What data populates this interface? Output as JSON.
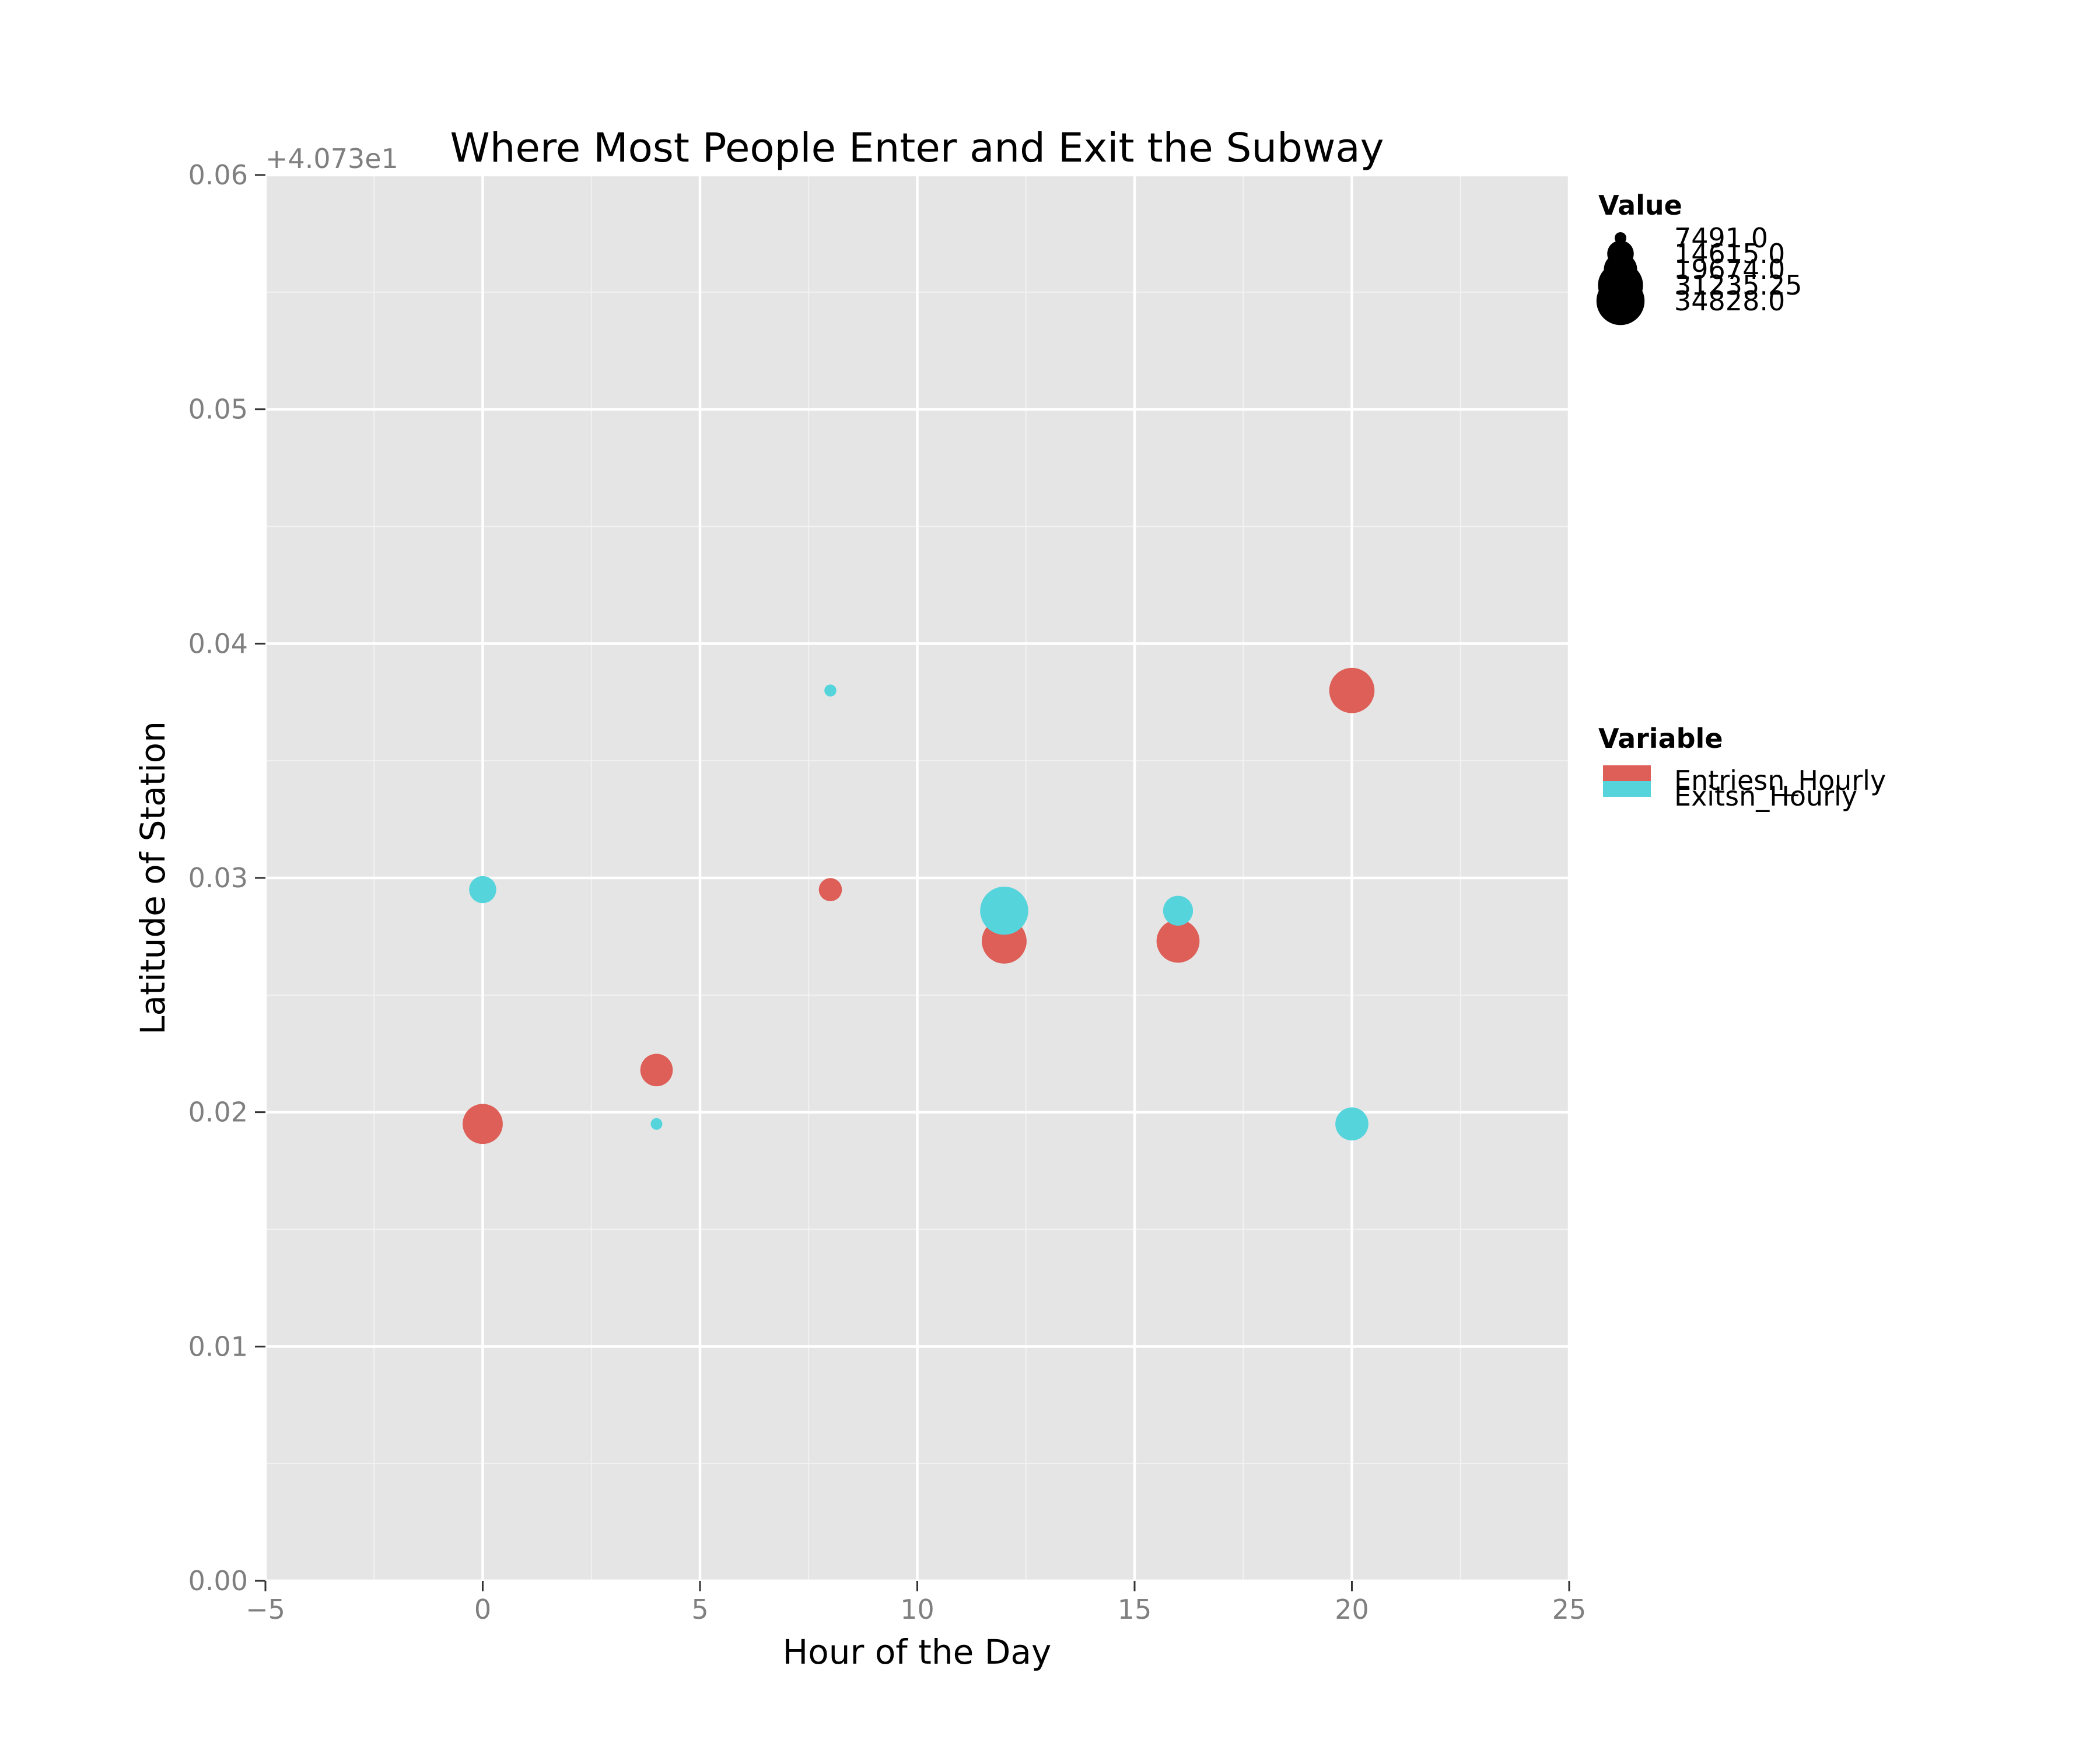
{
  "chart_data": {
    "type": "scatter",
    "title": "Where Most People Enter and Exit the Subway",
    "xlabel": "Hour of the Day",
    "ylabel": "Latitude of Station",
    "y_offset_label": "+4.073e1",
    "xlim": [
      -5,
      25
    ],
    "ylim": [
      0.0,
      0.06
    ],
    "x_ticks": [
      -5,
      0,
      5,
      10,
      15,
      20,
      25
    ],
    "x_tick_labels": [
      "−5",
      "0",
      "5",
      "10",
      "15",
      "20",
      "25"
    ],
    "y_ticks": [
      0.0,
      0.01,
      0.02,
      0.03,
      0.04,
      0.05,
      0.06
    ],
    "y_tick_labels": [
      "0.00",
      "0.01",
      "0.02",
      "0.03",
      "0.04",
      "0.05",
      "0.06"
    ],
    "grid": true,
    "background": "#e5e5e5",
    "size_legend": {
      "title": "Value",
      "entries": [
        {
          "label": "7491.0",
          "value": 7491.0
        },
        {
          "label": "14615.0",
          "value": 14615.0
        },
        {
          "label": "19674.0",
          "value": 19674.0
        },
        {
          "label": "31235.25",
          "value": 31235.25
        },
        {
          "label": "34828.0",
          "value": 34828.0
        }
      ]
    },
    "color_legend": {
      "title": "Variable",
      "placement": "right"
    },
    "series": [
      {
        "name": "Entriesn_Hourly",
        "color": "#dd5f57",
        "points": [
          {
            "x": 0,
            "y": 0.0195,
            "value": 26000
          },
          {
            "x": 4,
            "y": 0.0218,
            "value": 19000
          },
          {
            "x": 8,
            "y": 0.0295,
            "value": 12500
          },
          {
            "x": 12,
            "y": 0.0273,
            "value": 31000
          },
          {
            "x": 16,
            "y": 0.0273,
            "value": 29000
          },
          {
            "x": 20,
            "y": 0.038,
            "value": 31500
          }
        ]
      },
      {
        "name": "Exitsn_Hourly",
        "color": "#56d4dc",
        "points": [
          {
            "x": 0,
            "y": 0.0295,
            "value": 15000
          },
          {
            "x": 4,
            "y": 0.0195,
            "value": 7491
          },
          {
            "x": 8,
            "y": 0.038,
            "value": 7600
          },
          {
            "x": 12,
            "y": 0.0286,
            "value": 34828
          },
          {
            "x": 16,
            "y": 0.0286,
            "value": 17000
          },
          {
            "x": 20,
            "y": 0.0195,
            "value": 19500
          }
        ]
      }
    ]
  }
}
